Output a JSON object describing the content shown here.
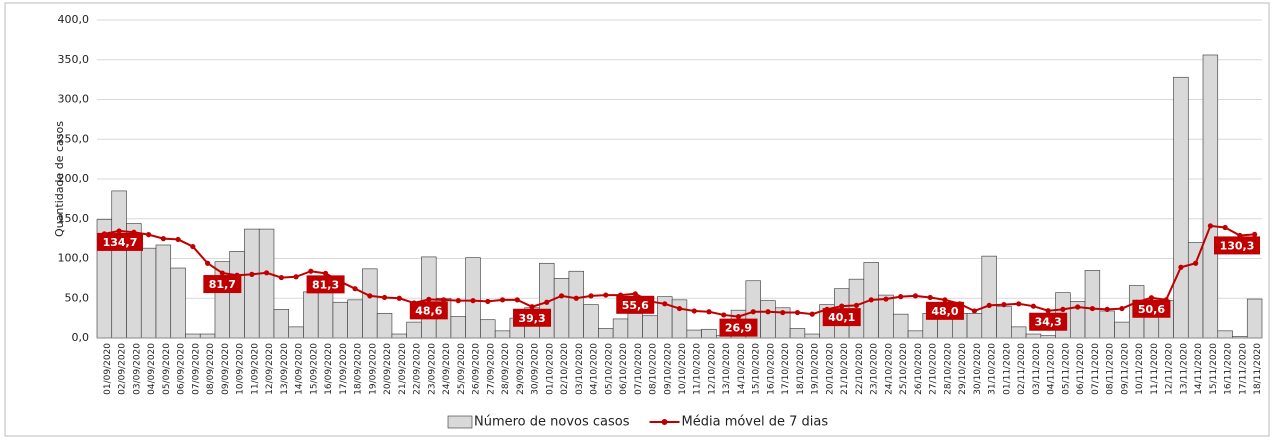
{
  "chart_data": {
    "type": "bar_line",
    "y_label": "Quantidade de casos",
    "categories": [
      "01/09/2020",
      "02/09/2020",
      "03/09/2020",
      "04/09/2020",
      "05/09/2020",
      "06/09/2020",
      "07/09/2020",
      "08/09/2020",
      "09/09/2020",
      "10/09/2020",
      "11/09/2020",
      "12/09/2020",
      "13/09/2020",
      "14/09/2020",
      "15/09/2020",
      "16/09/2020",
      "17/09/2020",
      "18/09/2020",
      "19/09/2020",
      "20/09/2020",
      "21/09/2020",
      "22/09/2020",
      "23/09/2020",
      "24/09/2020",
      "25/09/2020",
      "26/09/2020",
      "27/09/2020",
      "28/09/2020",
      "29/09/2020",
      "30/09/2020",
      "01/10/2020",
      "02/10/2020",
      "03/10/2020",
      "04/10/2020",
      "05/10/2020",
      "06/10/2020",
      "07/10/2020",
      "08/10/2020",
      "09/10/2020",
      "10/10/2020",
      "11/10/2020",
      "12/10/2020",
      "13/10/2020",
      "14/10/2020",
      "15/10/2020",
      "16/10/2020",
      "17/10/2020",
      "18/10/2020",
      "19/10/2020",
      "20/10/2020",
      "21/10/2020",
      "22/10/2020",
      "23/10/2020",
      "24/10/2020",
      "25/10/2020",
      "26/10/2020",
      "27/10/2020",
      "28/10/2020",
      "29/10/2020",
      "30/10/2020",
      "31/10/2020",
      "01/11/2020",
      "02/11/2020",
      "03/11/2020",
      "04/11/2020",
      "05/11/2020",
      "06/11/2020",
      "07/11/2020",
      "08/11/2020",
      "09/11/2020",
      "10/11/2020",
      "11/11/2020",
      "12/11/2020",
      "13/11/2020",
      "14/11/2020",
      "15/11/2020",
      "16/11/2020",
      "17/11/2020",
      "18/11/2020"
    ],
    "series": [
      {
        "name": "Número de novos casos",
        "type": "bar",
        "color": "#d9d9d9",
        "values": [
          149,
          185,
          144,
          113,
          117,
          88,
          5,
          5,
          96,
          109,
          137,
          137,
          36,
          14,
          58,
          73,
          45,
          48,
          87,
          31,
          5,
          20,
          102,
          50,
          27,
          101,
          23,
          9,
          25,
          38,
          94,
          75,
          84,
          42,
          12,
          24,
          31,
          28,
          52,
          48,
          10,
          11,
          3,
          35,
          72,
          47,
          38,
          12,
          5,
          42,
          62,
          74,
          95,
          54,
          30,
          9,
          31,
          45,
          31,
          31,
          103,
          40,
          14,
          5,
          3,
          57,
          46,
          85,
          34,
          20,
          66,
          36,
          47,
          328,
          120,
          356,
          9,
          2,
          49
        ]
      },
      {
        "name": "Média móvel de 7 dias",
        "type": "line",
        "color": "#c00000",
        "values": [
          131,
          134.7,
          133,
          130,
          125,
          124,
          115,
          94,
          81.7,
          79,
          80,
          82,
          76,
          77,
          84,
          81.3,
          71,
          62,
          53,
          51,
          50,
          44,
          48.6,
          48,
          47,
          47,
          46,
          48,
          48,
          39.3,
          45,
          53,
          50,
          53,
          54,
          54,
          55.6,
          46,
          43,
          37,
          34,
          33,
          29,
          26.9,
          33,
          33,
          32,
          32,
          30,
          36,
          40.1,
          41,
          48,
          49,
          52,
          53,
          51,
          48.0,
          43,
          34,
          41,
          42,
          43,
          40,
          34.3,
          36,
          39,
          37,
          36,
          37,
          45,
          50.6,
          48,
          89,
          94,
          141,
          139,
          129,
          130.3
        ],
        "value_labels": [
          null,
          "134,7",
          null,
          null,
          null,
          null,
          null,
          null,
          "81,7",
          null,
          null,
          null,
          null,
          null,
          null,
          "81,3",
          null,
          null,
          null,
          null,
          null,
          null,
          "48,6",
          null,
          null,
          null,
          null,
          null,
          null,
          "39,3",
          null,
          null,
          null,
          null,
          null,
          null,
          "55,6",
          null,
          null,
          null,
          null,
          null,
          null,
          "26,9",
          null,
          null,
          null,
          null,
          null,
          null,
          "40,1",
          null,
          null,
          null,
          null,
          null,
          null,
          "48,0",
          null,
          null,
          null,
          null,
          null,
          null,
          "34,3",
          null,
          null,
          null,
          null,
          null,
          null,
          "50,6",
          null,
          null,
          null,
          null,
          null,
          null,
          "130,3"
        ]
      }
    ],
    "ylim": [
      0,
      400
    ],
    "yticks": [
      {
        "value": 0,
        "label": "0,0"
      },
      {
        "value": 50,
        "label": "50,0"
      },
      {
        "value": 100,
        "label": "100,0"
      },
      {
        "value": 150,
        "label": "150,0"
      },
      {
        "value": 200,
        "label": "200,0"
      },
      {
        "value": 250,
        "label": "250,0"
      },
      {
        "value": 300,
        "label": "300,0"
      },
      {
        "value": 350,
        "label": "350,0"
      },
      {
        "value": 400,
        "label": "400,0"
      }
    ],
    "grid": true,
    "legend": "bottom"
  }
}
